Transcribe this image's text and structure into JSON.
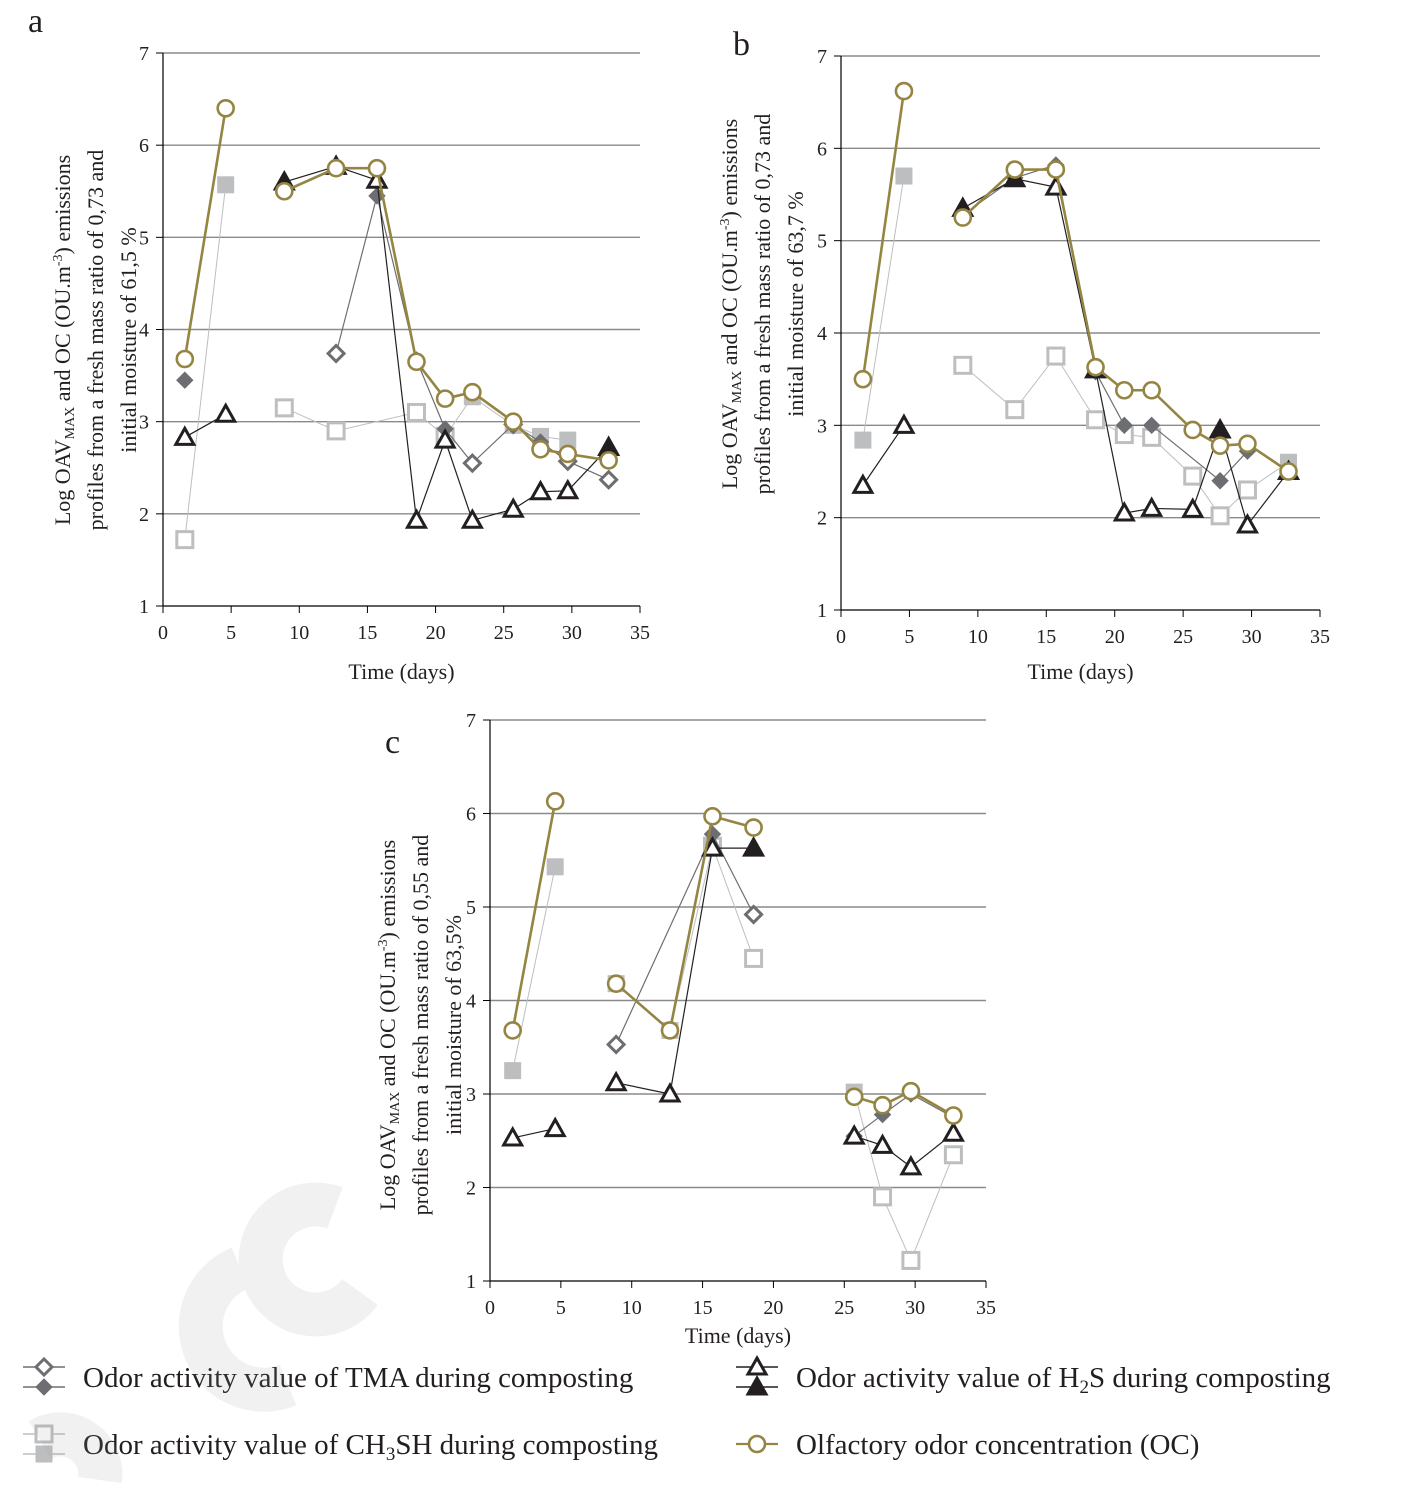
{
  "chart_data": [
    {
      "panel": "a",
      "type": "line",
      "xlabel": "Time (days)",
      "ylabel_line1": "Log OAV",
      "ylabel_sub": "MAX",
      "ylabel_line1_rest": " and OC (OU.m",
      "ylabel_sup": "-3",
      "ylabel_line1_end": ") emissions",
      "ylabel_line2": "profiles from a fresh mass ratio of  0,73 and",
      "ylabel_line3": "initial moisture of 61,5 %",
      "xlim": [
        0,
        35
      ],
      "ylim": [
        1,
        7
      ],
      "xticks": [
        0,
        5,
        10,
        15,
        20,
        25,
        30,
        35
      ],
      "yticks": [
        1,
        2,
        3,
        4,
        5,
        6,
        7
      ],
      "grid": "horizontal",
      "series": [
        {
          "key": "tma",
          "segments": [
            [
              [
                1.6,
                3.45,
                1
              ]
            ],
            [
              [
                12.7,
                3.74,
                0
              ],
              [
                15.7,
                5.45,
                1
              ],
              [
                18.6,
                3.67,
                1
              ],
              [
                20.7,
                2.92,
                1
              ],
              [
                22.7,
                2.55,
                0
              ],
              [
                25.7,
                2.97,
                0
              ],
              [
                27.7,
                2.78,
                1
              ],
              [
                29.7,
                2.57,
                0
              ],
              [
                32.7,
                2.37,
                0
              ]
            ]
          ]
        },
        {
          "key": "ch3sh",
          "segments": [
            [
              [
                1.6,
                1.72,
                0
              ],
              [
                4.6,
                5.57,
                1
              ]
            ],
            [
              [
                8.9,
                3.15,
                0
              ],
              [
                12.7,
                2.9,
                0
              ],
              [
                18.6,
                3.1,
                0
              ],
              [
                20.7,
                2.84,
                0
              ],
              [
                22.7,
                3.27,
                1
              ],
              [
                25.7,
                2.96,
                1
              ],
              [
                27.7,
                2.84,
                1
              ],
              [
                29.7,
                2.8,
                1
              ]
            ]
          ]
        },
        {
          "key": "h2s",
          "segments": [
            [
              [
                1.6,
                2.83,
                0
              ],
              [
                4.6,
                3.08,
                0
              ]
            ],
            [
              [
                8.9,
                5.6,
                1
              ],
              [
                12.7,
                5.77,
                1
              ],
              [
                15.7,
                5.62,
                0
              ],
              [
                18.6,
                1.93,
                0
              ],
              [
                20.7,
                2.8,
                0
              ],
              [
                22.7,
                1.93,
                0
              ],
              [
                25.7,
                2.05,
                0
              ],
              [
                27.7,
                2.24,
                0
              ],
              [
                29.7,
                2.25,
                0
              ],
              [
                32.7,
                2.72,
                1
              ]
            ]
          ]
        },
        {
          "key": "oc",
          "segments": [
            [
              [
                1.6,
                3.68
              ],
              [
                4.6,
                6.4
              ]
            ],
            [
              [
                8.9,
                5.5
              ],
              [
                12.7,
                5.75
              ],
              [
                15.7,
                5.75
              ],
              [
                18.6,
                3.65
              ],
              [
                20.7,
                3.25
              ],
              [
                22.7,
                3.32
              ],
              [
                25.7,
                3.0
              ],
              [
                27.7,
                2.7
              ],
              [
                29.7,
                2.65
              ],
              [
                32.7,
                2.58
              ]
            ]
          ]
        }
      ]
    },
    {
      "panel": "b",
      "type": "line",
      "xlabel": "Time (days)",
      "ylabel_line1": "Log OAV",
      "ylabel_sub": "MAX",
      "ylabel_line1_rest": " and OC (OU.m",
      "ylabel_sup": "-3",
      "ylabel_line1_end": ") emissions",
      "ylabel_line2": "profiles from a fresh mass ratio of 0,73 and",
      "ylabel_line3": "initial moisture of 63,7 %",
      "xlim": [
        0,
        35
      ],
      "ylim": [
        1,
        7
      ],
      "xticks": [
        0,
        5,
        10,
        15,
        20,
        25,
        30,
        35
      ],
      "yticks": [
        1,
        2,
        3,
        4,
        5,
        6,
        7
      ],
      "grid": "horizontal",
      "series": [
        {
          "key": "tma",
          "segments": [
            [
              [
                8.9,
                5.28,
                1
              ],
              [
                12.7,
                5.68,
                1
              ],
              [
                15.7,
                5.82,
                1
              ],
              [
                18.6,
                3.58,
                1
              ],
              [
                20.7,
                3.0,
                1
              ],
              [
                22.7,
                3.0,
                1
              ],
              [
                27.7,
                2.4,
                1
              ],
              [
                29.7,
                2.72,
                1
              ]
            ]
          ]
        },
        {
          "key": "ch3sh",
          "segments": [
            [
              [
                1.6,
                2.84,
                1
              ],
              [
                4.6,
                5.7,
                1
              ]
            ],
            [
              [
                8.9,
                3.65,
                0
              ],
              [
                12.7,
                3.17,
                0
              ],
              [
                15.7,
                3.75,
                0
              ],
              [
                18.6,
                3.06,
                0
              ],
              [
                20.7,
                2.9,
                0
              ],
              [
                22.7,
                2.87,
                0
              ],
              [
                25.7,
                2.45,
                0
              ],
              [
                27.7,
                2.02,
                0
              ],
              [
                29.7,
                2.3,
                0
              ],
              [
                32.7,
                2.6,
                1
              ]
            ]
          ]
        },
        {
          "key": "h2s",
          "segments": [
            [
              [
                1.6,
                2.35,
                0
              ],
              [
                4.6,
                3.0,
                0
              ]
            ],
            [
              [
                8.9,
                5.35,
                1
              ],
              [
                12.7,
                5.67,
                1
              ],
              [
                15.7,
                5.58,
                0
              ],
              [
                18.6,
                3.6,
                1
              ],
              [
                20.7,
                2.05,
                0
              ],
              [
                22.7,
                2.1,
                0
              ],
              [
                25.7,
                2.09,
                0
              ],
              [
                27.7,
                2.95,
                1
              ],
              [
                29.7,
                1.92,
                0
              ],
              [
                32.7,
                2.5,
                1
              ]
            ]
          ]
        },
        {
          "key": "oc",
          "segments": [
            [
              [
                1.6,
                3.5
              ],
              [
                4.6,
                6.62
              ]
            ],
            [
              [
                8.9,
                5.25
              ],
              [
                12.7,
                5.77
              ],
              [
                15.7,
                5.77
              ],
              [
                18.6,
                3.63
              ],
              [
                20.7,
                3.38
              ],
              [
                22.7,
                3.38
              ],
              [
                25.7,
                2.95
              ],
              [
                27.7,
                2.78
              ],
              [
                29.7,
                2.8
              ],
              [
                32.7,
                2.5
              ]
            ]
          ]
        }
      ]
    },
    {
      "panel": "c",
      "type": "line",
      "xlabel": "Time (days)",
      "ylabel_line1": "Log OAV",
      "ylabel_sub": "MAX",
      "ylabel_line1_rest": " and OC (OU.m",
      "ylabel_sup": "-3",
      "ylabel_line1_end": ") emissions",
      "ylabel_line2": "profiles from a fresh mass ratio of 0,55 and",
      "ylabel_line3": "initial moisture of 63,5%",
      "xlim": [
        0,
        35
      ],
      "ylim": [
        1,
        7
      ],
      "xticks": [
        0,
        5,
        10,
        15,
        20,
        25,
        30,
        35
      ],
      "yticks": [
        1,
        2,
        3,
        4,
        5,
        6,
        7
      ],
      "grid": "horizontal",
      "series": [
        {
          "key": "tma",
          "segments": [
            [
              [
                8.9,
                3.53,
                0
              ],
              [
                15.7,
                5.78,
                1
              ],
              [
                18.6,
                4.92,
                0
              ]
            ],
            [
              [
                25.7,
                2.55,
                1
              ],
              [
                27.7,
                2.78,
                1
              ],
              [
                29.7,
                3.0,
                1
              ],
              [
                32.7,
                2.75,
                1
              ]
            ]
          ]
        },
        {
          "key": "ch3sh",
          "segments": [
            [
              [
                1.6,
                3.25,
                1
              ],
              [
                4.6,
                5.43,
                1
              ]
            ],
            [
              [
                8.9,
                4.18,
                1
              ],
              [
                12.7,
                3.68,
                1
              ],
              [
                15.7,
                5.65,
                0
              ],
              [
                18.6,
                4.45,
                0
              ]
            ],
            [
              [
                25.7,
                3.02,
                1
              ],
              [
                27.7,
                1.9,
                0
              ],
              [
                29.7,
                1.22,
                0
              ],
              [
                32.7,
                2.35,
                0
              ]
            ]
          ]
        },
        {
          "key": "h2s",
          "segments": [
            [
              [
                1.6,
                2.53,
                0
              ],
              [
                4.6,
                2.63,
                0
              ]
            ],
            [
              [
                8.9,
                3.12,
                0
              ],
              [
                12.7,
                3.0,
                0
              ],
              [
                15.7,
                5.63,
                0
              ],
              [
                18.6,
                5.63,
                1
              ]
            ],
            [
              [
                25.7,
                2.55,
                0
              ],
              [
                27.7,
                2.45,
                0
              ],
              [
                29.7,
                2.22,
                0
              ],
              [
                32.7,
                2.58,
                0
              ]
            ]
          ]
        },
        {
          "key": "oc",
          "segments": [
            [
              [
                1.6,
                3.68
              ],
              [
                4.6,
                6.13
              ]
            ],
            [
              [
                8.9,
                4.18
              ],
              [
                12.7,
                3.68
              ],
              [
                15.7,
                5.97
              ],
              [
                18.6,
                5.85
              ]
            ],
            [
              [
                25.7,
                2.97
              ],
              [
                27.7,
                2.88
              ],
              [
                29.7,
                3.03
              ],
              [
                32.7,
                2.77
              ]
            ]
          ]
        }
      ]
    }
  ],
  "legend": [
    {
      "key": "tma",
      "text": "Odor activity value of TMA during composting"
    },
    {
      "key": "h2s",
      "pre": "Odor activity value of H",
      "sub": "2",
      "post": "S during composting"
    },
    {
      "key": "ch3sh",
      "pre": "Odor activity value of CH",
      "sub": "3",
      "post": "SH during composting"
    },
    {
      "key": "oc",
      "text": "Olfactory odor concentration (OC)"
    }
  ],
  "colors": {
    "tma": "#6d6e71",
    "ch3sh": "#bcbec0",
    "h2s": "#231f20",
    "oc": "#958542",
    "grid": "#8a8a8a",
    "axis": "#000000"
  }
}
